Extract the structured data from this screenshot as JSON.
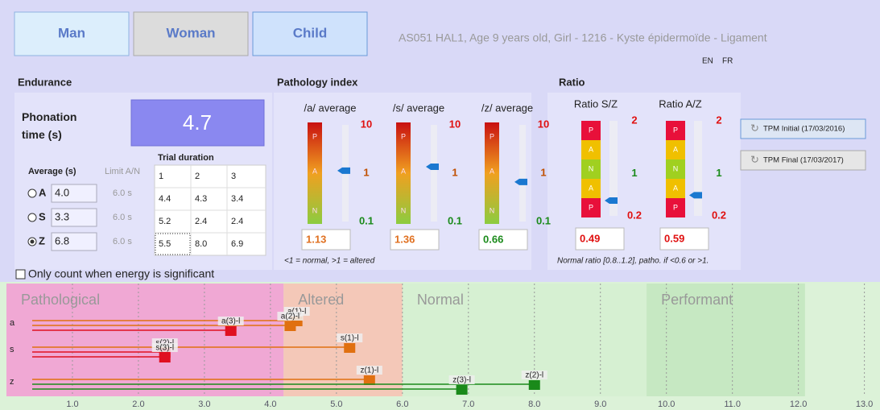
{
  "header": {
    "buttons": [
      "Man",
      "Woman",
      "Child"
    ],
    "patient": "AS051 HAL1, Age 9 years old, Girl - 1216 - Kyste épidermoïde - Ligament",
    "languages": [
      "EN",
      "FR"
    ]
  },
  "endurance": {
    "title": "Endurance",
    "phonation_label": "Phonation time (s)",
    "phonation_value": "4.7",
    "average_label": "Average (s)",
    "limit_label": "Limit A/N",
    "selected": 2,
    "rows": [
      {
        "label": "A",
        "value": "4.0",
        "limit": "6.0 s"
      },
      {
        "label": "S",
        "value": "3.3",
        "limit": "6.0 s"
      },
      {
        "label": "Z",
        "value": "6.8",
        "limit": "6.0 s"
      }
    ],
    "trial_title": "Trial duration",
    "trial_header": [
      "1",
      "2",
      "3"
    ],
    "trial_rows": [
      [
        "4.4",
        "4.3",
        "3.4"
      ],
      [
        "5.2",
        "2.4",
        "2.4"
      ],
      [
        "5.5",
        "8.0",
        "6.9"
      ]
    ],
    "checkbox": "Only count when energy is significant"
  },
  "pathology": {
    "title": "Pathology index",
    "zone_letters": [
      "P",
      "A",
      "N"
    ],
    "ylim": [
      0.1,
      10
    ],
    "log": true,
    "yticks": [
      10,
      1,
      0.1
    ],
    "tick_colors": [
      "#e01010",
      "#c05000",
      "#1a8a1a"
    ],
    "gauges": [
      {
        "label": "/a/ average",
        "value": 1.13,
        "color": "#e07020"
      },
      {
        "label": "/s/ average",
        "value": 1.36,
        "color": "#e07020"
      },
      {
        "label": "/z/ average",
        "value": 0.66,
        "color": "#1a8a1a"
      }
    ],
    "note": "<1 = normal, >1 = altered"
  },
  "ratio": {
    "title": "Ratio",
    "zone_letters": [
      "P",
      "A",
      "N",
      "A",
      "P"
    ],
    "ylim": [
      0.2,
      2
    ],
    "yticks": [
      2,
      1,
      0.2
    ],
    "tick_colors": [
      "#e01010",
      "#1a8a1a",
      "#e01010"
    ],
    "gauges": [
      {
        "label": "Ratio S/Z",
        "value": 0.49,
        "color": "#e01010"
      },
      {
        "label": "Ratio A/Z",
        "value": 0.59,
        "color": "#e01010"
      }
    ],
    "note": "Normal ratio [0.8..1.2], patho. if <0.6 or >1."
  },
  "tpm_buttons": [
    "TPM Initial (17/03/2016)",
    "TPM Final (17/03/2017)"
  ],
  "chart_data": {
    "type": "dot",
    "xlim": [
      0,
      13.2
    ],
    "xticks": [
      {
        "value": 1,
        "label": "1.0"
      },
      {
        "value": 2,
        "label": "2.0"
      },
      {
        "value": 3,
        "label": "3.0"
      },
      {
        "value": 4,
        "label": "4.0"
      },
      {
        "value": 5,
        "label": "5.0"
      },
      {
        "value": 6,
        "label": "6.0"
      },
      {
        "value": 7,
        "label": "7.0"
      },
      {
        "value": 8,
        "label": "8.0"
      },
      {
        "value": 9,
        "label": "9.0"
      },
      {
        "value": 10,
        "label": "10.0"
      },
      {
        "value": 11,
        "label": "11.0"
      },
      {
        "value": 12,
        "label": "12.0"
      },
      {
        "value": 13,
        "label": "13.0"
      }
    ],
    "zones": [
      {
        "label": "Pathological",
        "from": 0,
        "to": 4.2,
        "color": "#f0a8d4"
      },
      {
        "label": "Altered",
        "from": 4.2,
        "to": 6.0,
        "color": "#f4c8b8"
      },
      {
        "label": "Normal",
        "from": 6.0,
        "to": 9.7,
        "color": "#d6f0d2"
      },
      {
        "label": "Performant",
        "from": 9.7,
        "to": 12.1,
        "color": "#c6e8c2"
      }
    ],
    "rows": [
      {
        "name": "a",
        "markers": [
          {
            "label": "a(1)-l",
            "value": 4.4,
            "color": "#e07010"
          },
          {
            "label": "a(2)-l",
            "value": 4.3,
            "color": "#e07010"
          },
          {
            "label": "a(3)-l",
            "value": 3.4,
            "color": "#e01020"
          }
        ]
      },
      {
        "name": "s",
        "markers": [
          {
            "label": "s(1)-l",
            "value": 5.2,
            "color": "#e07010"
          },
          {
            "label": "s(2)-l",
            "value": 2.4,
            "color": "#e01020"
          },
          {
            "label": "s(3)-l",
            "value": 2.4,
            "color": "#e01020"
          }
        ]
      },
      {
        "name": "z",
        "markers": [
          {
            "label": "z(1)-l",
            "value": 5.5,
            "color": "#e07010"
          },
          {
            "label": "z(2)-l",
            "value": 8.0,
            "color": "#1a8a1a"
          },
          {
            "label": "z(3)-l",
            "value": 6.9,
            "color": "#1a8a1a"
          }
        ]
      }
    ]
  }
}
